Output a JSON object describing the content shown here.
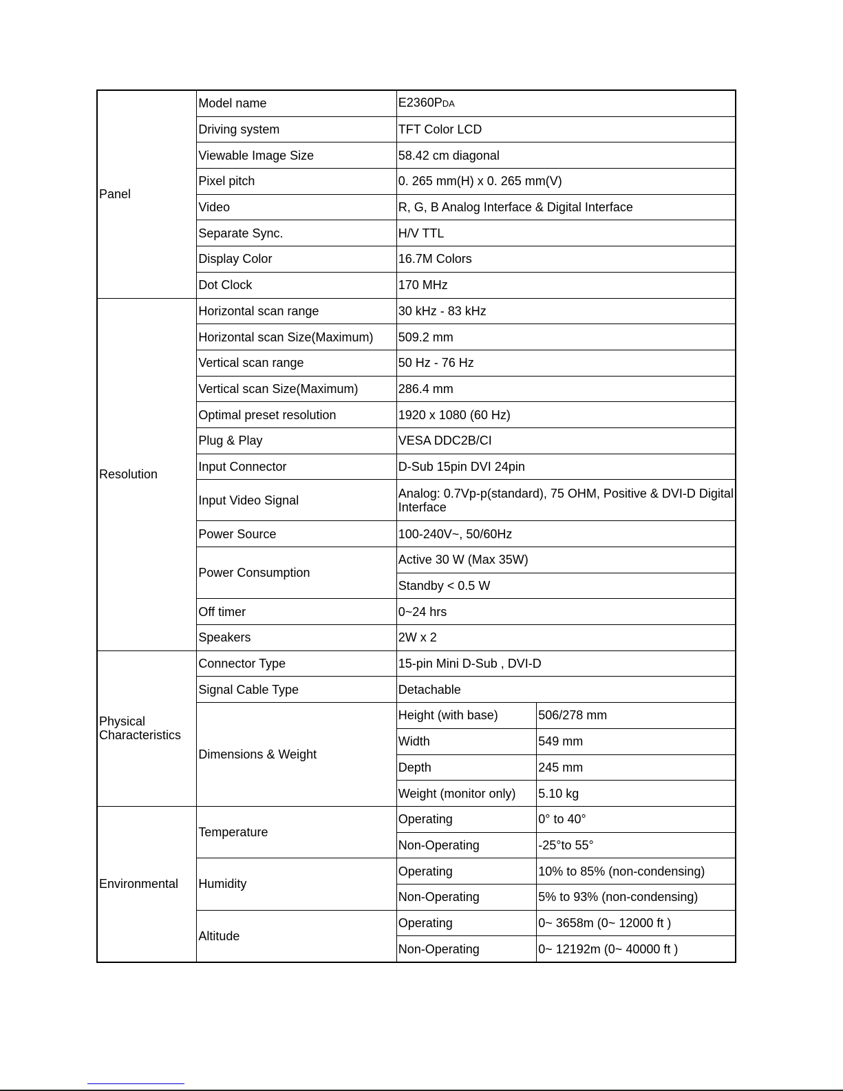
{
  "sections": [
    {
      "name": "Panel",
      "rows": [
        {
          "label": "Model name",
          "value": "E2360P",
          "value_suffix": "DA"
        },
        {
          "label": "Driving system",
          "value": "TFT Color LCD"
        },
        {
          "label": "Viewable Image Size",
          "value": "58.42 cm diagonal"
        },
        {
          "label": "Pixel pitch",
          "value": "0. 265 mm(H) x 0. 265 mm(V)"
        },
        {
          "label": "Video",
          "value": "R, G, B Analog Interface & Digital Interface"
        },
        {
          "label": "Separate Sync.",
          "value": "H/V TTL"
        },
        {
          "label": "Display Color",
          "value": "16.7M Colors"
        },
        {
          "label": "Dot Clock",
          "value": "170 MHz"
        }
      ]
    },
    {
      "name": "Resolution",
      "rows": [
        {
          "label": "Horizontal scan range",
          "value": "30 kHz - 83 kHz"
        },
        {
          "label": "Horizontal scan Size(Maximum)",
          "value": "509.2 mm"
        },
        {
          "label": "Vertical scan range",
          "value": "50 Hz - 76 Hz"
        },
        {
          "label": "Vertical scan Size(Maximum)",
          "value": "286.4 mm"
        },
        {
          "label": "Optimal preset resolution",
          "value": "1920 x 1080 (60 Hz)"
        },
        {
          "label": "Plug & Play",
          "value": "VESA DDC2B/CI"
        },
        {
          "label": "Input Connector",
          "value": "D-Sub 15pin DVI 24pin"
        },
        {
          "label": "Input Video Signal",
          "value": "Analog: 0.7Vp-p(standard), 75 OHM, Positive & DVI-D Digital Interface",
          "tall": true
        },
        {
          "label": "Power Source",
          "value": "100-240V~, 50/60Hz"
        },
        {
          "label": "Power Consumption",
          "values": [
            "Active 30 W  (Max 35W)",
            "Standby < 0.5 W"
          ]
        },
        {
          "label": "Off timer",
          "value": "0~24 hrs"
        },
        {
          "label": "Speakers",
          "value": "2W x 2"
        }
      ]
    },
    {
      "name": "Physical Characteristics",
      "rows": [
        {
          "label": "Connector Type",
          "value": "15-pin Mini D-Sub , DVI-D"
        },
        {
          "label": "Signal Cable Type",
          "value": "Detachable"
        },
        {
          "label": "Dimensions & Weight",
          "sub": [
            [
              "Height (with base)",
              "506/278 mm"
            ],
            [
              "Width",
              "549 mm"
            ],
            [
              "Depth",
              "245 mm"
            ],
            [
              "Weight (monitor only)",
              "5.10 kg"
            ]
          ]
        }
      ]
    },
    {
      "name": "Environmental",
      "rows": [
        {
          "label": "Temperature",
          "sub": [
            [
              "Operating",
              "0° to 40°"
            ],
            [
              "Non-Operating",
              "-25°to 55°"
            ]
          ]
        },
        {
          "label": "Humidity",
          "sub": [
            [
              "Operating",
              "10% to 85% (non-condensing)"
            ],
            [
              "Non-Operating",
              "5% to 93% (non-condensing)"
            ]
          ]
        },
        {
          "label": "Altitude",
          "sub": [
            [
              "Operating",
              "0~ 3658m (0~ 12000 ft )"
            ],
            [
              "Non-Operating",
              "0~ 12192m (0~ 40000 ft )"
            ]
          ]
        }
      ]
    }
  ]
}
